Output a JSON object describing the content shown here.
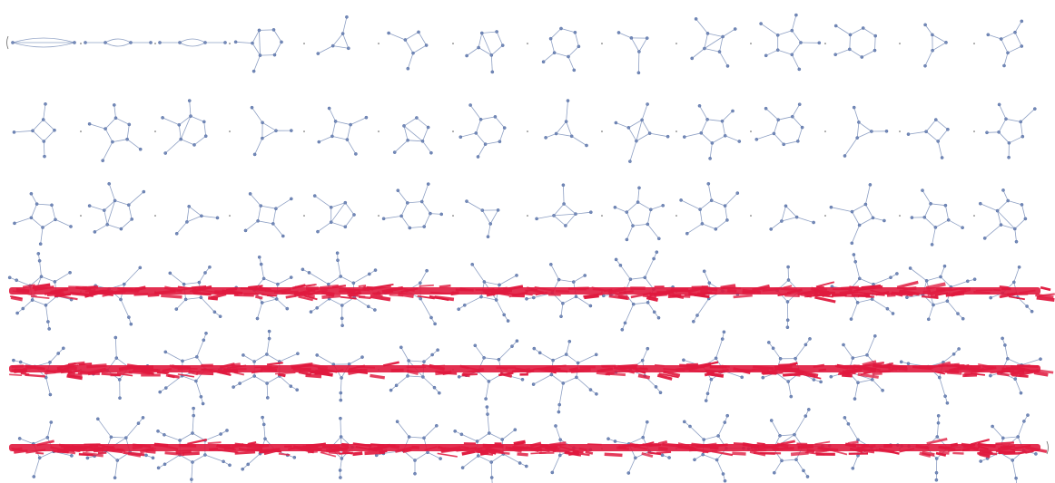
{
  "figure": {
    "background": "#ffffff",
    "edge_color": "#8ea0c4",
    "vertex_color": "#7389b8",
    "strike_color": "#e0193e",
    "separator": ",",
    "rows": [
      {
        "row": 1,
        "struck_out": false,
        "graphs": [
          {
            "type": "two-vertex multigraph"
          },
          {
            "type": "dumbbell multigraph"
          },
          {
            "type": "dumbbell multigraph"
          },
          {
            "type": "triangle with pendant"
          },
          {
            "type": "triangle with pendants"
          },
          {
            "type": "triangle with three pendants"
          },
          {
            "type": "quadrilateral with pendants"
          },
          {
            "type": "bowtie"
          },
          {
            "type": "square with four pendants"
          },
          {
            "type": "diamond with pendants"
          },
          {
            "type": "triangle fan"
          },
          {
            "type": "diamond with four pendants"
          },
          {
            "type": "pentagon with pendants"
          },
          {
            "type": "pentagon with pendants"
          }
        ]
      },
      {
        "row": 2,
        "struck_out": false,
        "graphs": [
          {
            "type": "pentagon"
          },
          {
            "type": "house graph"
          },
          {
            "type": "house graph"
          },
          {
            "type": "square with pendants"
          },
          {
            "type": "star-like graph"
          },
          {
            "type": "wheel-like graph"
          },
          {
            "type": "triangle with pendants"
          },
          {
            "type": "hexagon"
          },
          {
            "type": "hexagon with pendants"
          },
          {
            "type": "hexagon with pendants"
          },
          {
            "type": "pentagon with pendants"
          },
          {
            "type": "pentagon with pendants"
          },
          {
            "type": "hexagon with pendants"
          },
          {
            "type": "square pair"
          }
        ]
      },
      {
        "row": 3,
        "struck_out": false,
        "graphs": [
          {
            "type": "domino"
          },
          {
            "type": "domino"
          },
          {
            "type": "prism"
          },
          {
            "type": "star-like graph"
          },
          {
            "type": "hexagon with pendants"
          },
          {
            "type": "hexagon with pendants"
          },
          {
            "type": "hexagon with pendants"
          },
          {
            "type": "hexagon with pendants"
          },
          {
            "type": "domino with pendants"
          },
          {
            "type": "domino with pendants"
          },
          {
            "type": "domino with pendants"
          },
          {
            "type": "pentagon with pendants"
          },
          {
            "type": "hexagon with pendants"
          },
          {
            "type": "hexagon with pendants"
          }
        ]
      },
      {
        "row": 4,
        "struck_out": true,
        "graph_count": 14
      },
      {
        "row": 5,
        "struck_out": true,
        "graph_count": 14
      },
      {
        "row": 6,
        "struck_out": true,
        "graph_count": 14
      }
    ]
  }
}
